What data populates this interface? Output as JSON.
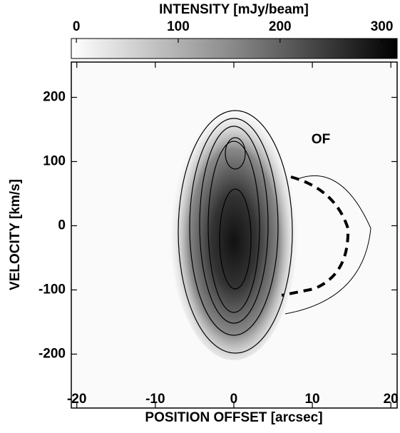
{
  "chart_data": {
    "type": "pv-diagram",
    "colorbar_title": "INTENSITY  [mJy/beam]",
    "clim": [
      -5,
      315
    ],
    "cticks": [
      0,
      100,
      200,
      300
    ],
    "xlabel": "POSITION OFFSET  [arcsec]",
    "ylabel": "VELOCITY  [km/s]",
    "xlim": [
      -20.7,
      20.8
    ],
    "xticks": [
      -20,
      -10,
      0,
      10,
      20
    ],
    "ylim": [
      -284,
      255
    ],
    "yticks": [
      -200,
      -100,
      0,
      100,
      200
    ],
    "annotation": "OF"
  }
}
